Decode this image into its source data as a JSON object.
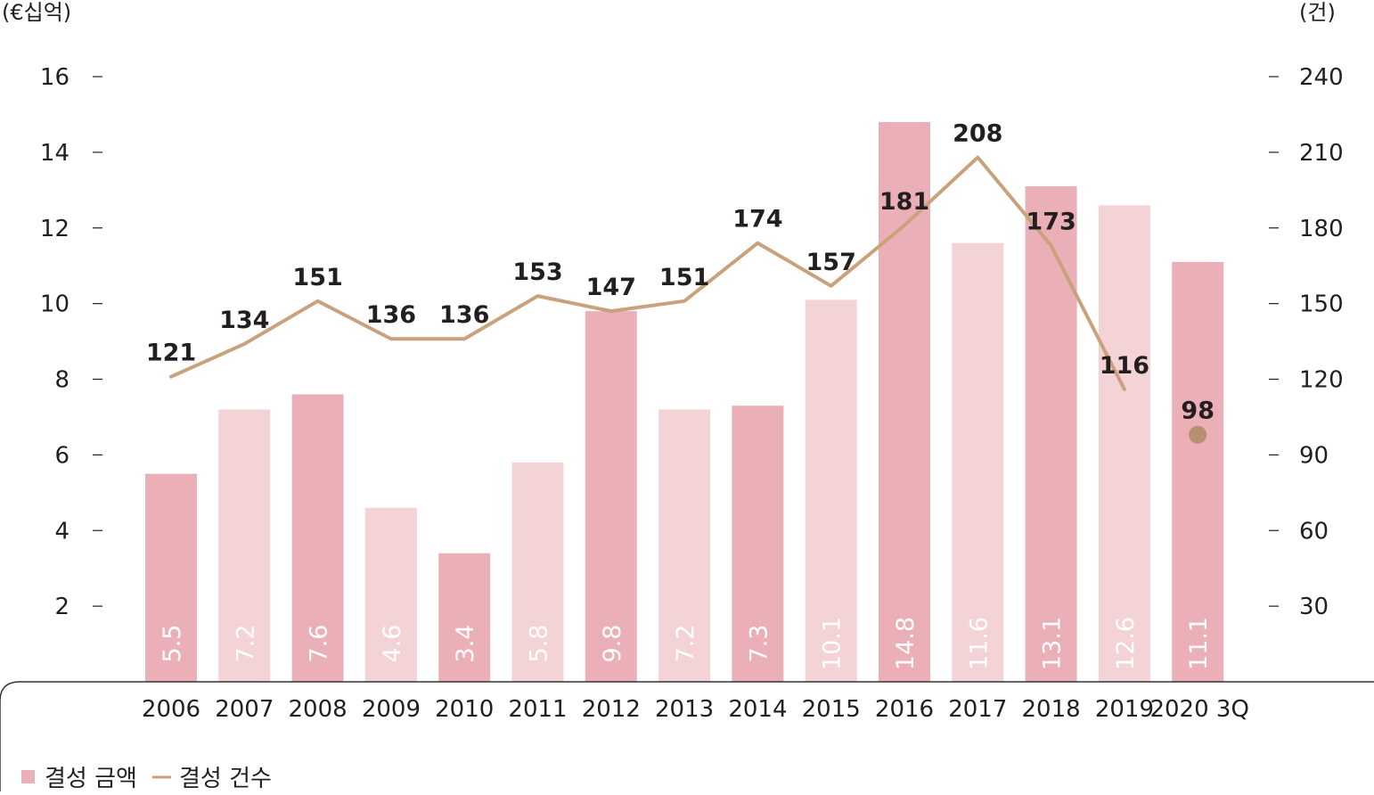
{
  "chart_data": {
    "type": "bar",
    "categories": [
      "2006",
      "2007",
      "2008",
      "2009",
      "2010",
      "2011",
      "2012",
      "2013",
      "2014",
      "2015",
      "2016",
      "2017",
      "2018",
      "2019",
      "2020 3Q"
    ],
    "series": [
      {
        "name": "결성 금액",
        "axis": "left",
        "type": "bar",
        "values": [
          5.5,
          7.2,
          7.6,
          4.6,
          3.4,
          5.8,
          9.8,
          7.2,
          7.3,
          10.1,
          14.8,
          11.6,
          13.1,
          12.6,
          11.1
        ],
        "value_labels": [
          "5.5",
          "7.2",
          "7.6",
          "4.6",
          "3.4",
          "5.8",
          "9.8",
          "7.2",
          "7.3",
          "10.1",
          "14.8",
          "11.6",
          "13.1",
          "12.6",
          "11.1"
        ]
      },
      {
        "name": "결성 건수",
        "axis": "right",
        "type": "line",
        "values": [
          121,
          134,
          151,
          136,
          136,
          153,
          147,
          151,
          174,
          157,
          181,
          208,
          173,
          116,
          98
        ],
        "value_labels": [
          "121",
          "134",
          "151",
          "136",
          "136",
          "153",
          "147",
          "151",
          "174",
          "157",
          "181",
          "208",
          "173",
          "116",
          "98"
        ]
      }
    ],
    "left_axis": {
      "unit": "(€십억)",
      "ylim": [
        0,
        16
      ],
      "ticks": [
        "2",
        "4",
        "6",
        "8",
        "10",
        "12",
        "14",
        "16"
      ]
    },
    "right_axis": {
      "unit": "(건)",
      "ylim": [
        0,
        240
      ],
      "ticks": [
        "30",
        "60",
        "90",
        "120",
        "150",
        "180",
        "210",
        "240"
      ]
    },
    "legend": {
      "placement": "bottom-left",
      "items": [
        {
          "label": "결성 금액",
          "marker": "square"
        },
        {
          "label": "결성 건수",
          "marker": "line"
        }
      ]
    },
    "colors": {
      "bar_dark": "#ebb0b7",
      "bar_light": "#f4d3d7",
      "line": "#c9a27c",
      "last_point": "#b59071",
      "text": "#231f20",
      "frame": "#333333"
    },
    "grid": false
  }
}
